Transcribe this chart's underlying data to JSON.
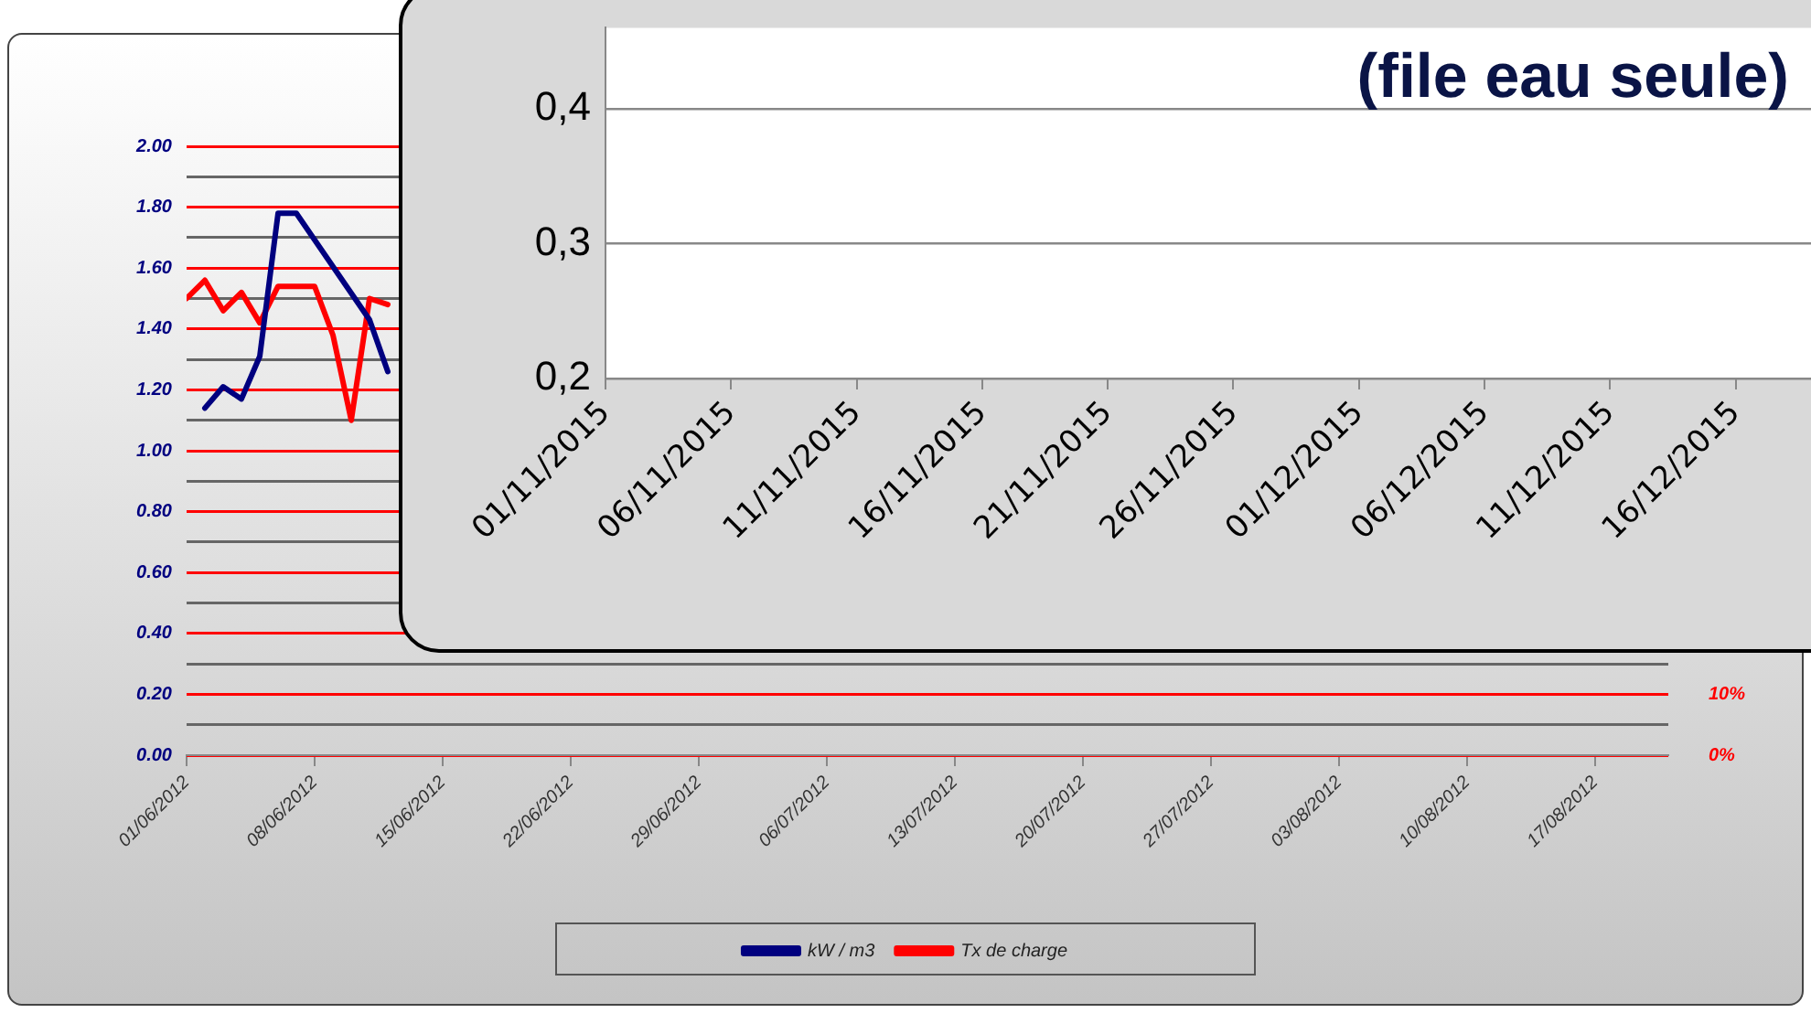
{
  "chart_data": [
    {
      "type": "line",
      "legend": "bottom",
      "grid": "y",
      "marker": "none",
      "xlim": [
        "2012-06-01",
        "2012-08-21"
      ],
      "xticks": [
        {
          "value": "2012-06-01",
          "label": "01/06/2012"
        },
        {
          "value": "2012-06-08",
          "label": "08/06/2012"
        },
        {
          "value": "2012-06-15",
          "label": "15/06/2012"
        },
        {
          "value": "2012-06-22",
          "label": "22/06/2012"
        },
        {
          "value": "2012-06-29",
          "label": "29/06/2012"
        },
        {
          "value": "2012-07-06",
          "label": "06/07/2012"
        },
        {
          "value": "2012-07-13",
          "label": "13/07/2012"
        },
        {
          "value": "2012-07-20",
          "label": "20/07/2012"
        },
        {
          "value": "2012-07-27",
          "label": "27/07/2012"
        },
        {
          "value": "2012-08-03",
          "label": "03/08/2012"
        },
        {
          "value": "2012-08-10",
          "label": "10/08/2012"
        },
        {
          "value": "2012-08-17",
          "label": "17/08/2012"
        }
      ],
      "ylim": [
        0,
        2
      ],
      "yticks": [
        {
          "value": 0,
          "label": "0.00"
        },
        {
          "value": 0.1,
          "label": null
        },
        {
          "value": 0.2,
          "label": "0.20"
        },
        {
          "value": 0.3,
          "label": null
        },
        {
          "value": 0.4,
          "label": "0.40"
        },
        {
          "value": 0.5,
          "label": null
        },
        {
          "value": 0.6,
          "label": "0.60"
        },
        {
          "value": 0.7,
          "label": null
        },
        {
          "value": 0.8,
          "label": "0.80"
        },
        {
          "value": 0.9,
          "label": null
        },
        {
          "value": 1.0,
          "label": "1.00"
        },
        {
          "value": 1.1,
          "label": null
        },
        {
          "value": 1.2,
          "label": "1.20"
        },
        {
          "value": 1.3,
          "label": null
        },
        {
          "value": 1.4,
          "label": "1.40"
        },
        {
          "value": 1.5,
          "label": null
        },
        {
          "value": 1.6,
          "label": "1.60"
        },
        {
          "value": 1.7,
          "label": null
        },
        {
          "value": 1.8,
          "label": "1.80"
        },
        {
          "value": 1.9,
          "label": null
        },
        {
          "value": 2.0,
          "label": "2.00"
        }
      ],
      "y2lim": [
        0,
        100
      ],
      "y2ticks": [
        {
          "value": 0,
          "label": "0%"
        },
        {
          "value": 10,
          "label": "10%"
        }
      ],
      "series": [
        {
          "name": "kW / m3",
          "color": "#00007f",
          "x": [
            "2012-06-02",
            "2012-06-03",
            "2012-06-04",
            "2012-06-05",
            "2012-06-06",
            "2012-06-07",
            "2012-06-11",
            "2012-06-12"
          ],
          "values": [
            1.14,
            1.21,
            1.17,
            1.31,
            1.78,
            1.78,
            1.43,
            1.26
          ]
        },
        {
          "name": "Tx de charge",
          "color": "#ff0000",
          "axis": "y2",
          "x": [
            "2012-06-01",
            "2012-06-02",
            "2012-06-03",
            "2012-06-04",
            "2012-06-05",
            "2012-06-06",
            "2012-06-08",
            "2012-06-09",
            "2012-06-10",
            "2012-06-11",
            "2012-06-12"
          ],
          "values": [
            75,
            78,
            73,
            76,
            71,
            77,
            77,
            69,
            55,
            75,
            74
          ]
        }
      ]
    },
    {
      "type": "line",
      "title": "(file eau seule)",
      "grid": "y",
      "xlim": [
        "2015-11-01",
        "2015-12-19"
      ],
      "xticks": [
        {
          "value": "2015-11-01",
          "label": "01/11/2015"
        },
        {
          "value": "2015-11-06",
          "label": "06/11/2015"
        },
        {
          "value": "2015-11-11",
          "label": "11/11/2015"
        },
        {
          "value": "2015-11-16",
          "label": "16/11/2015"
        },
        {
          "value": "2015-11-21",
          "label": "21/11/2015"
        },
        {
          "value": "2015-11-26",
          "label": "26/11/2015"
        },
        {
          "value": "2015-12-01",
          "label": "01/12/2015"
        },
        {
          "value": "2015-12-06",
          "label": "06/12/2015"
        },
        {
          "value": "2015-12-11",
          "label": "11/12/2015"
        },
        {
          "value": "2015-12-16",
          "label": "16/12/2015"
        }
      ],
      "ylim": [
        0.2,
        0.46
      ],
      "yticks": [
        {
          "value": 0.2,
          "label": "0,2"
        },
        {
          "value": 0.3,
          "label": "0,3"
        },
        {
          "value": 0.4,
          "label": "0,4"
        }
      ]
    }
  ]
}
